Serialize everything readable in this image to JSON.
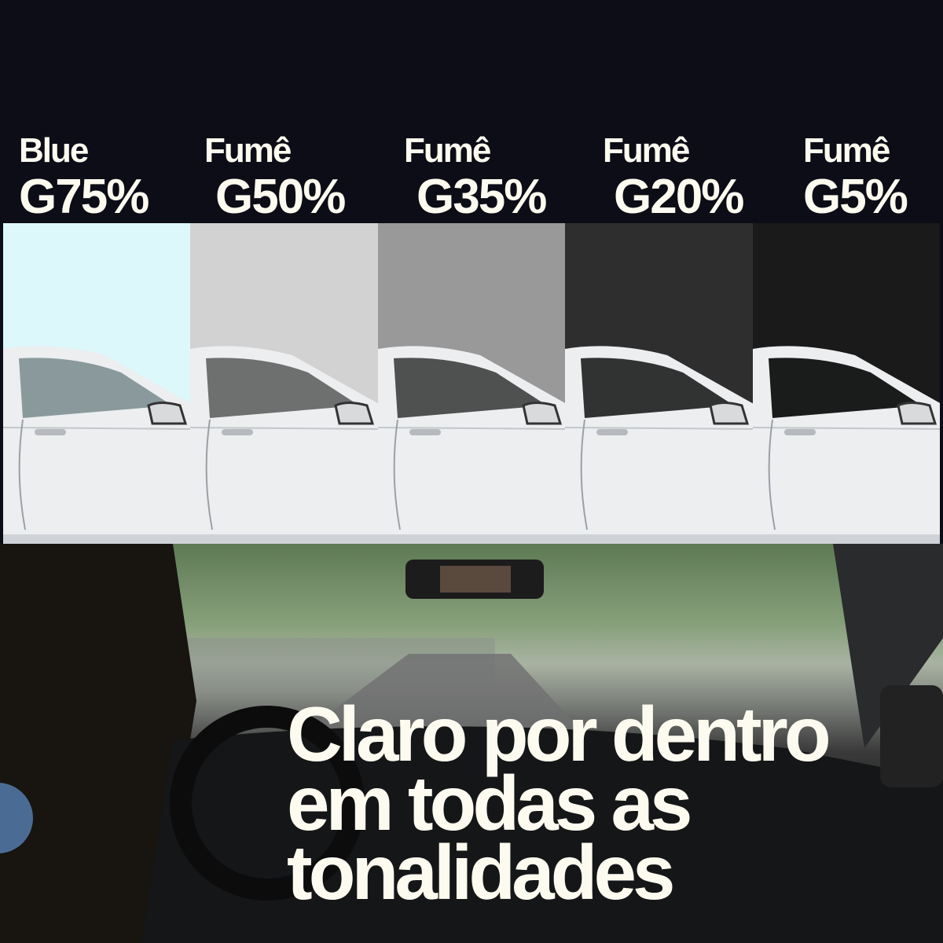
{
  "tints": [
    {
      "line1": "Blue",
      "line2": "G75%",
      "color": "#dcf8fb",
      "glass": "#8a9a9c"
    },
    {
      "line1": "Fumê",
      "line2": "G50%",
      "color": "#d2d2d2",
      "glass": "#6e7070"
    },
    {
      "line1": "Fumê",
      "line2": "G35%",
      "color": "#999999",
      "glass": "#4e514f"
    },
    {
      "line1": "Fumê",
      "line2": "G20%",
      "color": "#2e2e2e",
      "glass": "#303331"
    },
    {
      "line1": "Fumê",
      "line2": "G5%",
      "color": "#1a1a1a",
      "glass": "#1a1b1b"
    }
  ],
  "headline": {
    "line1": "Claro por dentro",
    "line2": "em todas as",
    "line3": "tonalidades"
  },
  "colors": {
    "background": "#0c0d16",
    "text": "#fdfbef",
    "accent_circle": "#4a6c94"
  }
}
